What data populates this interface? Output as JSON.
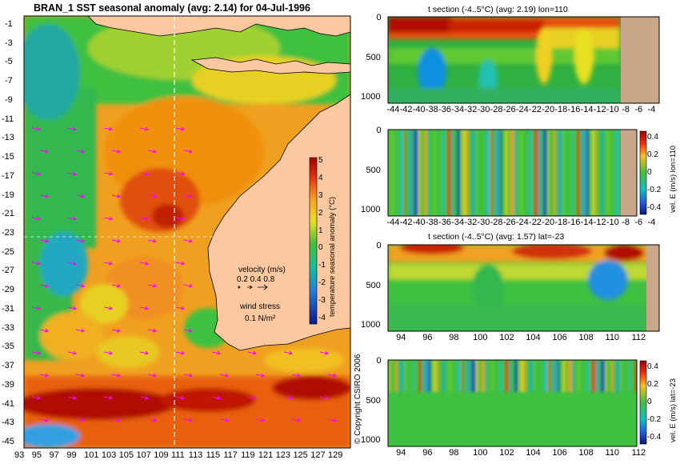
{
  "main_map": {
    "title": "BRAN_1  SST seasonal anomaly  (avg: 2.14)  for 04-Jul-1996",
    "lat_labels": [
      "-1",
      "-3",
      "-5",
      "-7",
      "-9",
      "-11",
      "-13",
      "-15",
      "-17",
      "-19",
      "-21",
      "-23",
      "-25",
      "-27",
      "-29",
      "-31",
      "-33",
      "-35",
      "-37",
      "-39",
      "-41",
      "-43",
      "-45"
    ],
    "lon_labels": [
      "93",
      "95",
      "97",
      "99",
      "101",
      "103",
      "105",
      "107",
      "109",
      "111",
      "113",
      "115",
      "117",
      "119",
      "121",
      "123",
      "125",
      "127",
      "129"
    ],
    "colorbar": {
      "label": "temperature seasonal anomaly (°C)",
      "ticks": [
        "5",
        "4",
        "3",
        "2",
        "1",
        "0",
        "-1",
        "-2",
        "-3",
        "-4"
      ]
    },
    "velocity_legend": {
      "label": "velocity (m/s)",
      "values": "0.2 0.4 0.8"
    },
    "wind_legend": {
      "label": "wind stress",
      "value": "0.1 N/m²"
    },
    "copyright": "© Copyright CSIRO 2006",
    "colors": {
      "land": "#fcc8a0",
      "ocean_base": "#f0a020",
      "arrows": "#ff00ff",
      "section_line": "#ffffff"
    }
  },
  "panels": [
    {
      "title": "t section (-4..5°C)  (avg: 2.19)  lon=110",
      "x_ticks": [
        "-44",
        "-42",
        "-40",
        "-38",
        "-36",
        "-34",
        "-32",
        "-30",
        "-28",
        "-26",
        "-24",
        "-22",
        "-20",
        "-18",
        "-16",
        "-14",
        "-12",
        "-10",
        "-8",
        "-6",
        "-4"
      ],
      "y_ticks": [
        "0",
        "500",
        "1000"
      ],
      "side_label": "",
      "cbar_ticks": []
    },
    {
      "title": "",
      "x_ticks": [
        "-44",
        "-42",
        "-40",
        "-38",
        "-36",
        "-34",
        "-32",
        "-30",
        "-28",
        "-26",
        "-24",
        "-22",
        "-20",
        "-18",
        "-16",
        "-14",
        "-12",
        "-10",
        "-8",
        "-6",
        "-4"
      ],
      "y_ticks": [
        "0",
        "500",
        "1000"
      ],
      "side_label": "vel. E (m/s) lon=110",
      "cbar_ticks": [
        "0.4",
        "0.2",
        "0",
        "-0.2",
        "-0.4"
      ]
    },
    {
      "title": "t section (-4..5°C)  (avg: 1.57)  lat=-23",
      "x_ticks": [
        "94",
        "96",
        "98",
        "100",
        "102",
        "104",
        "106",
        "108",
        "110",
        "112"
      ],
      "y_ticks": [
        "0",
        "500",
        "1000"
      ],
      "side_label": "",
      "cbar_ticks": []
    },
    {
      "title": "",
      "x_ticks": [
        "94",
        "96",
        "98",
        "100",
        "102",
        "104",
        "106",
        "108",
        "110",
        "112"
      ],
      "y_ticks": [
        "0",
        "500",
        "1000"
      ],
      "side_label": "vel. E (m/s) lat=-23",
      "cbar_ticks": [
        "0.4",
        "0.2",
        "0",
        "-0.2",
        "-0.4"
      ]
    }
  ],
  "chart_data": [
    {
      "type": "heatmap",
      "title": "BRAN_1  SST seasonal anomaly  (avg: 2.14)  for 04-Jul-1996",
      "xlabel": "",
      "ylabel": "",
      "xlim": [
        93,
        130
      ],
      "ylim": [
        -45,
        0
      ],
      "color_range": [
        -4,
        5
      ],
      "units": "°C",
      "avg": 2.14
    },
    {
      "type": "heatmap",
      "title": "t section (-4..5°C)  (avg: 2.19)  lon=110",
      "xlim": [
        -45,
        -3
      ],
      "ylim": [
        1050,
        0
      ],
      "color_range": [
        -4,
        5
      ],
      "avg": 2.19
    },
    {
      "type": "heatmap",
      "title": "",
      "ylabel": "vel. E (m/s) lon=110",
      "xlim": [
        -45,
        -3
      ],
      "ylim": [
        1050,
        0
      ],
      "color_range": [
        -0.4,
        0.4
      ]
    },
    {
      "type": "heatmap",
      "title": "t section (-4..5°C)  (avg: 1.57)  lat=-23",
      "xlim": [
        93,
        113.5
      ],
      "ylim": [
        1050,
        0
      ],
      "color_range": [
        -4,
        5
      ],
      "avg": 1.57
    },
    {
      "type": "heatmap",
      "title": "",
      "ylabel": "vel. E (m/s) lat=-23",
      "xlim": [
        93,
        113.5
      ],
      "ylim": [
        1050,
        0
      ],
      "color_range": [
        -0.4,
        0.4
      ]
    }
  ]
}
